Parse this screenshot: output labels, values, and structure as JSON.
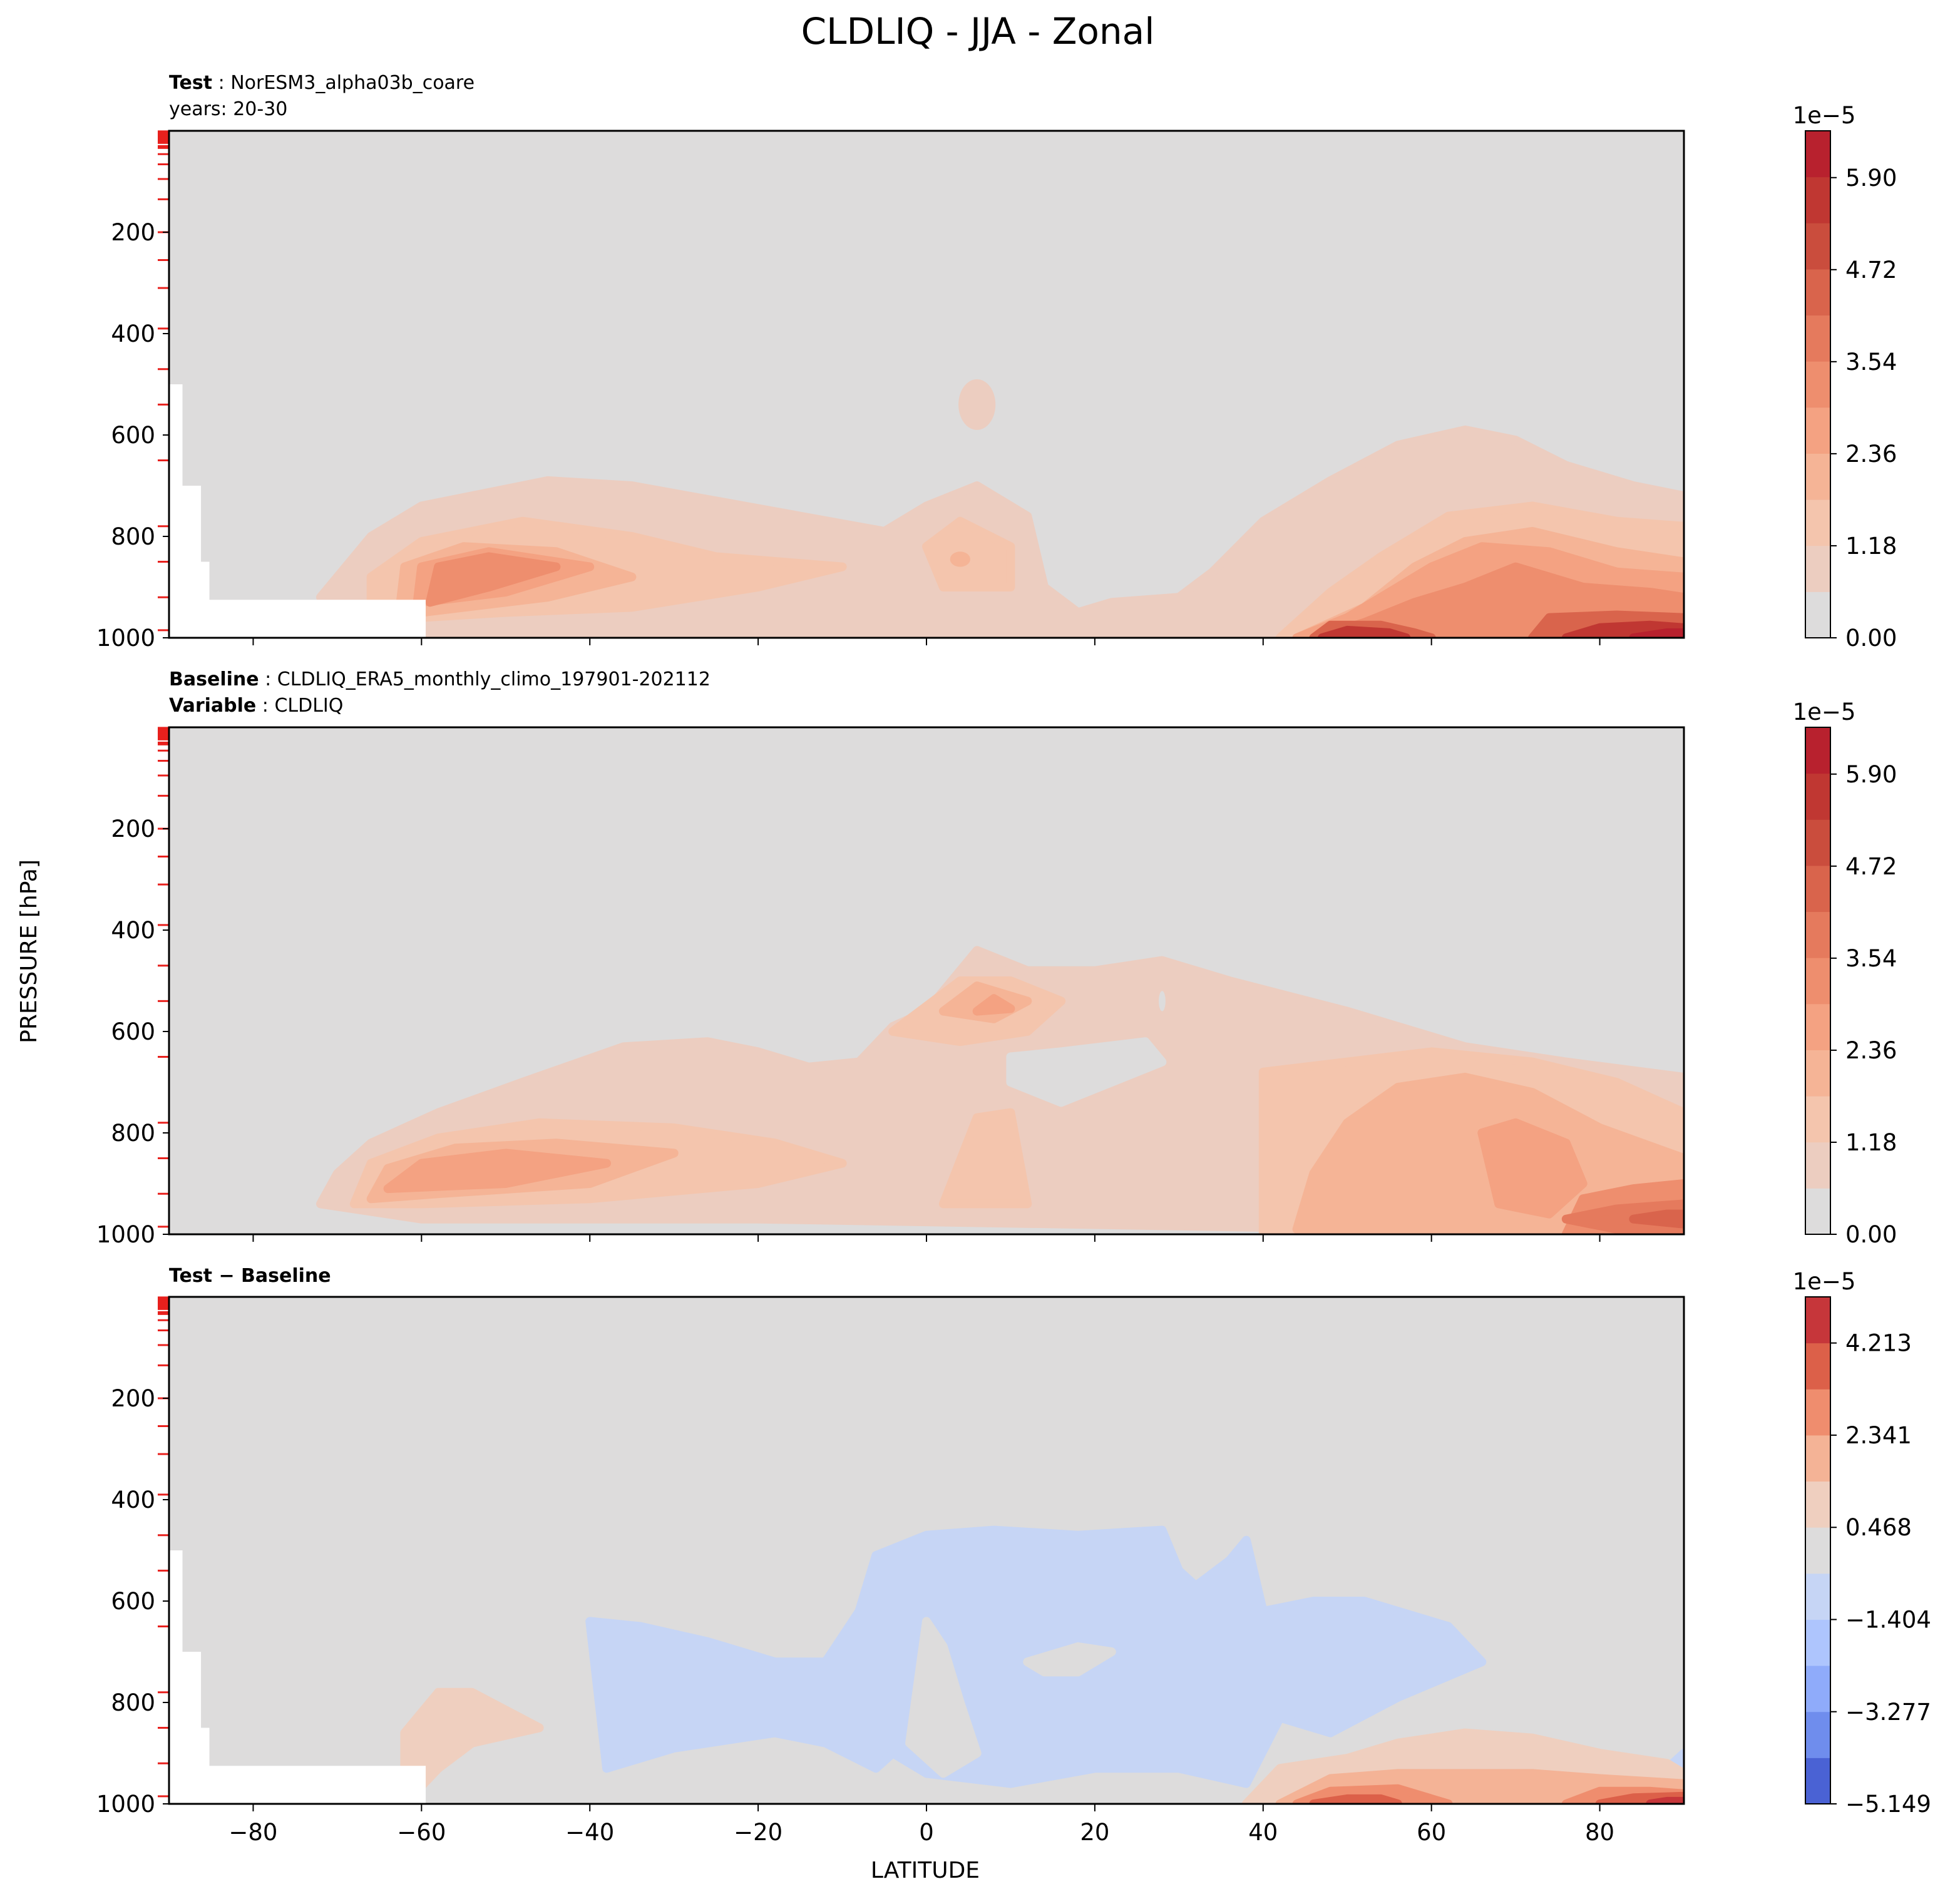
{
  "figure": {
    "title": "CLDLIQ - JJA - Zonal",
    "ylabel": "PRESSURE [hPa]",
    "xlabel": "LATITUDE"
  },
  "chart_data": [
    {
      "type": "contour",
      "panel": "test",
      "header": [
        {
          "key": "Test",
          "value": "NorESM3_alpha03b_coare"
        },
        {
          "key": "",
          "value": "years: 20-30"
        }
      ],
      "xlim": [
        -90,
        90
      ],
      "ylim": [
        1000,
        0
      ],
      "x_ticks": [
        -80,
        -60,
        -40,
        -20,
        0,
        20,
        40,
        60,
        80
      ],
      "y_ticks": [
        200,
        400,
        600,
        800,
        1000
      ],
      "colorbar": {
        "exponent_label": "1e−5",
        "tick_labels": [
          "0.00",
          "1.18",
          "2.36",
          "3.54",
          "4.72",
          "5.90"
        ],
        "range": [
          0,
          6.5
        ],
        "levels": 11,
        "colors": [
          "#dddcdc",
          "#eccdc0",
          "#f4c5ad",
          "#f5b496",
          "#f4a282",
          "#ee8e6e",
          "#e57a5d",
          "#d9644c",
          "#ca4d3d",
          "#c03732",
          "#b8212e"
        ]
      },
      "missing_region": "surface below terrain (Antarctica)",
      "features": [
        {
          "label": "SH midlatitude low cloud",
          "lat_range": [
            -72,
            -22
          ],
          "pressure_range": [
            680,
            1000
          ],
          "peak_level": 5
        },
        {
          "label": "tropical boundary layer",
          "lat_range": [
            -25,
            12
          ],
          "pressure_range": [
            760,
            1000
          ],
          "peak_level": 4
        },
        {
          "label": "NH high-latitude low cloud",
          "lat_range": [
            35,
            90
          ],
          "pressure_range": [
            590,
            1000
          ],
          "peak_level": 10
        }
      ]
    },
    {
      "type": "contour",
      "panel": "baseline",
      "header": [
        {
          "key": "Baseline",
          "value": "CLDLIQ_ERA5_monthly_climo_197901-202112"
        },
        {
          "key": "Variable",
          "value": "CLDLIQ"
        }
      ],
      "xlim": [
        -90,
        90
      ],
      "ylim": [
        1000,
        0
      ],
      "x_ticks": [
        -80,
        -60,
        -40,
        -20,
        0,
        20,
        40,
        60,
        80
      ],
      "y_ticks": [
        200,
        400,
        600,
        800,
        1000
      ],
      "colorbar": {
        "exponent_label": "1e−5",
        "tick_labels": [
          "0.00",
          "1.18",
          "2.36",
          "3.54",
          "4.72",
          "5.90"
        ],
        "range": [
          0,
          6.5
        ],
        "levels": 11,
        "colors": [
          "#dddcdc",
          "#eccdc0",
          "#f4c5ad",
          "#f5b496",
          "#f4a282",
          "#ee8e6e",
          "#e57a5d",
          "#d9644c",
          "#ca4d3d",
          "#c03732",
          "#b8212e"
        ]
      },
      "features": [
        {
          "label": "SH midlatitude low cloud",
          "lat_range": [
            -70,
            -15
          ],
          "pressure_range": [
            600,
            1000
          ],
          "peak_level": 5
        },
        {
          "label": "tropical mid-level cloud",
          "lat_range": [
            -12,
            30
          ],
          "pressure_range": [
            420,
            720
          ],
          "peak_level": 4
        },
        {
          "label": "NH high-latitude low cloud",
          "lat_range": [
            35,
            90
          ],
          "pressure_range": [
            640,
            1000
          ],
          "peak_level": 7
        }
      ]
    },
    {
      "type": "contour",
      "panel": "difference",
      "header": [
        {
          "key": "Test − Baseline",
          "value": ""
        }
      ],
      "xlim": [
        -90,
        90
      ],
      "ylim": [
        1000,
        0
      ],
      "x_ticks": [
        -80,
        -60,
        -40,
        -20,
        0,
        20,
        40,
        60,
        80
      ],
      "y_ticks": [
        200,
        400,
        600,
        800,
        1000
      ],
      "colorbar": {
        "exponent_label": "1e−5",
        "tick_labels": [
          "−5.149",
          "−3.277",
          "−1.404",
          "0.468",
          "2.341",
          "4.213"
        ],
        "range": [
          -5.149,
          5.15
        ],
        "levels": 11,
        "colors": [
          "#4a62d4",
          "#6f8ded",
          "#8fabfa",
          "#aec5fd",
          "#c6d5f5",
          "#dddcdc",
          "#efcfbf",
          "#f4b396",
          "#ef8d6e",
          "#dc6049",
          "#c6363a"
        ]
      },
      "missing_region": "surface below terrain (Antarctica)",
      "features": [
        {
          "label": "negative bias (tropics/subtropics mid-levels)",
          "lat_range": [
            -40,
            66
          ],
          "pressure_range": [
            430,
            960
          ],
          "peak_level": 4
        },
        {
          "label": "positive bias SH low cloud",
          "lat_range": [
            -63,
            -46
          ],
          "pressure_range": [
            770,
            1000
          ],
          "peak_level": 6
        },
        {
          "label": "positive bias NH low cloud",
          "lat_range": [
            40,
            90
          ],
          "pressure_range": [
            860,
            1000
          ],
          "peak_level": 10
        }
      ]
    }
  ]
}
